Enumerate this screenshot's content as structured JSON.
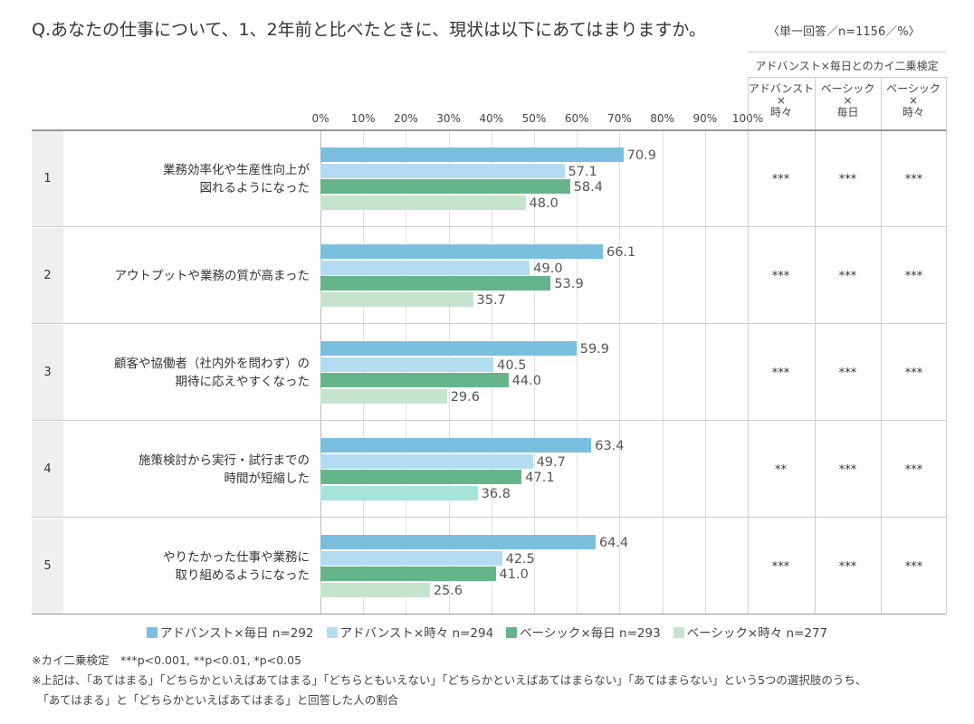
{
  "chart_data": {
    "type": "bar",
    "orientation": "horizontal",
    "title": "Q.あなたの仕事について、1、2年前と比べたときに、現状は以下にあてはまりますか。",
    "subtitle": "〈単一回答／n=1156／%〉",
    "xlim": [
      0,
      100
    ],
    "xticks": [
      "0%",
      "10%",
      "20%",
      "30%",
      "40%",
      "50%",
      "60%",
      "70%",
      "80%",
      "90%",
      "100%"
    ],
    "grid": true,
    "legend_position": "bottom",
    "row_numbers": [
      "1",
      "2",
      "3",
      "4",
      "5"
    ],
    "categories": [
      "業務効率化や生産性向上が\n図れるようになった",
      "アウトプットや業務の質が高まった",
      "顧客や協働者（社内外を問わず）の\n期待に応えやすくなった",
      "施策検討から実行・試行までの\n時間が短縮した",
      "やりたかった仕事や業務に\n取り組めるようになった"
    ],
    "series": [
      {
        "name": "アドバンスト×毎日 n=292",
        "color": "#7bbfde",
        "values": [
          70.9,
          66.1,
          59.9,
          63.4,
          64.4
        ]
      },
      {
        "name": "アドバンスト×時々 n=294",
        "color": "#b4dcf0",
        "values": [
          57.1,
          49.0,
          40.5,
          49.7,
          42.5
        ]
      },
      {
        "name": "ベーシック×毎日 n=293",
        "color": "#66b48a",
        "values": [
          58.4,
          53.9,
          44.0,
          47.1,
          41.0
        ]
      },
      {
        "name": "ベーシック×時々 n=277",
        "color": "#c6e4cd",
        "values": [
          48.0,
          35.7,
          29.6,
          36.8,
          25.6
        ]
      }
    ],
    "highlight": {
      "category": "施策検討から実行・試行までの\n時間が短縮した",
      "series": "ベーシック×時々 n=277",
      "color": "#a6e4d9"
    },
    "significance": {
      "header": "アドバンスト×毎日とのカイ二乗検定",
      "columns": [
        [
          "アドバンスト",
          "×",
          "時々"
        ],
        [
          "ベーシック",
          "×",
          "毎日"
        ],
        [
          "ベーシック",
          "×",
          "時々"
        ]
      ],
      "rows": [
        [
          "***",
          "***",
          "***"
        ],
        [
          "***",
          "***",
          "***"
        ],
        [
          "***",
          "***",
          "***"
        ],
        [
          "**",
          "***",
          "***"
        ],
        [
          "***",
          "***",
          "***"
        ]
      ]
    },
    "notes": [
      "※カイ二乗検定　***p<0.001, **p<0.01, *p<0.05",
      "※上記は、「あてはまる」「どちらかといえばあてはまる」「どちらともいえない」「どちらかといえばあてはまらない」「あてはまらない」という5つの選択肢のうち、",
      "　「あてはまる」と「どちらかといえばあてはまる」と回答した人の割合"
    ]
  }
}
